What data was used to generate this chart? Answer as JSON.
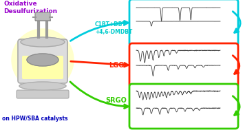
{
  "title_text": "Oxidative\nDesulfurization",
  "title_color": "#9900cc",
  "model_feed_label": "C1BT+DBT\n+4,6-DMDBT",
  "model_feed_label_color": "#00cccc",
  "lgo_label": "LGO",
  "lgo_label_color": "#ff2200",
  "srgo_label": "SRGO",
  "srgo_label_color": "#33cc00",
  "bottom_label": "on HPW/SBA catalysts",
  "bottom_label_color": "#0000bb",
  "panel1_border_color": "#00ccdd",
  "panel2_border_color": "#ff2200",
  "panel3_border_color": "#33cc00",
  "bg_color": "#ffffff",
  "chromatogram_color": "#444444",
  "fig_width": 3.56,
  "fig_height": 1.89,
  "dpi": 100
}
